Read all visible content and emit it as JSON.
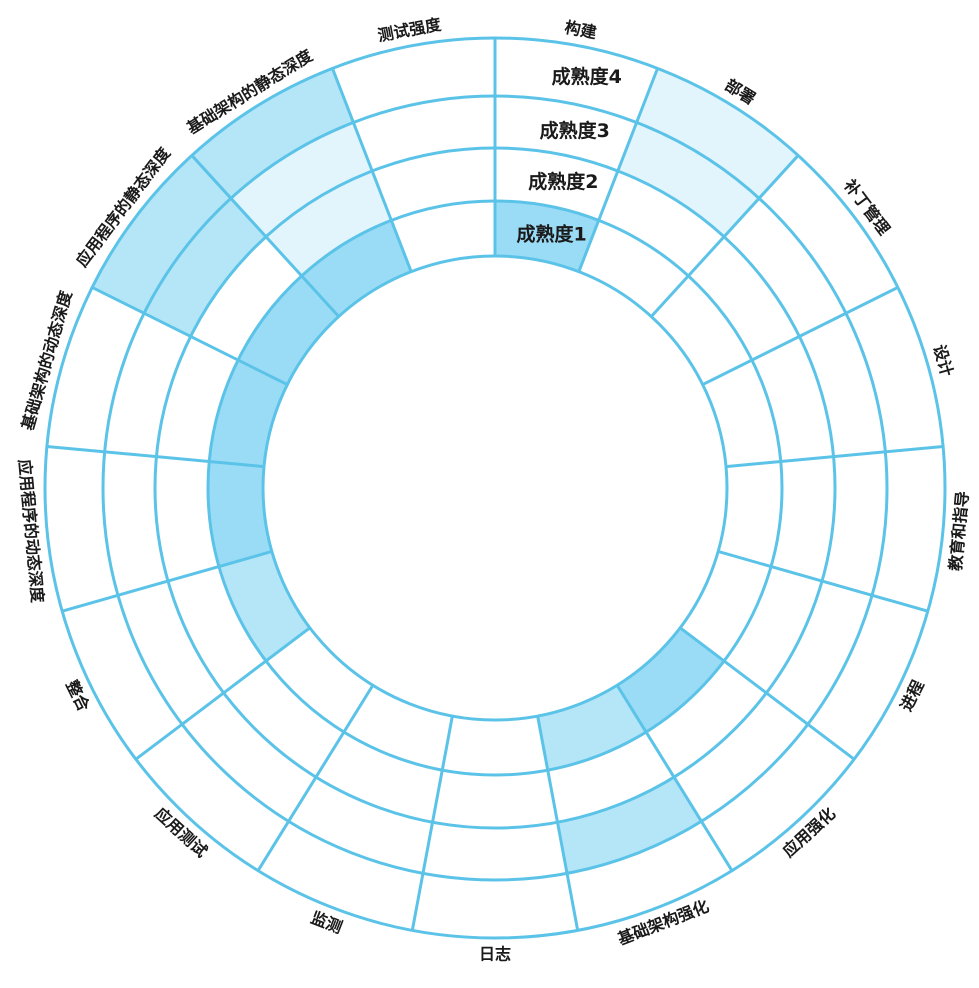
{
  "colors": {
    "line": "#5bc3e8",
    "fill_strong": "#9adcf6",
    "fill_medium": "#b5e6f8",
    "fill_light": "#e3f5fc",
    "background": "#ffffff",
    "text": "#1a1a1a"
  },
  "levels": [
    "成熟度1",
    "成熟度2",
    "成熟度3",
    "成熟度4"
  ],
  "segments": [
    {
      "label": "构建",
      "filled": [
        1,
        0,
        0,
        0
      ]
    },
    {
      "label": "部署",
      "filled": [
        0,
        0,
        3,
        3
      ]
    },
    {
      "label": "补丁管理",
      "filled": [
        0,
        0,
        0,
        0
      ]
    },
    {
      "label": "设计",
      "filled": [
        0,
        0,
        0,
        0
      ]
    },
    {
      "label": "教育和指导",
      "filled": [
        0,
        0,
        0,
        0
      ]
    },
    {
      "label": "进程",
      "filled": [
        0,
        0,
        0,
        0
      ]
    },
    {
      "label": "应用强化",
      "filled": [
        1,
        0,
        0,
        0
      ]
    },
    {
      "label": "基础架构强化",
      "filled": [
        2,
        0,
        2,
        0
      ]
    },
    {
      "label": "日志",
      "filled": [
        0,
        0,
        0,
        0
      ]
    },
    {
      "label": "监测",
      "filled": [
        0,
        0,
        0,
        0
      ]
    },
    {
      "label": "应用测试",
      "filled": [
        0,
        0,
        0,
        0
      ]
    },
    {
      "label": "整合",
      "filled": [
        2,
        0,
        0,
        0
      ]
    },
    {
      "label": "应用程序的动态深度",
      "filled": [
        1,
        0,
        0,
        0
      ]
    },
    {
      "label": "基础架构的动态深度",
      "filled": [
        1,
        0,
        0,
        0
      ]
    },
    {
      "label": "应用程序的静态深度",
      "filled": [
        1,
        0,
        2,
        2
      ]
    },
    {
      "label": "基础架构的静态深度",
      "filled": [
        1,
        3,
        3,
        2
      ]
    },
    {
      "label": "测试强度",
      "filled": [
        0,
        0,
        0,
        0
      ]
    }
  ]
}
